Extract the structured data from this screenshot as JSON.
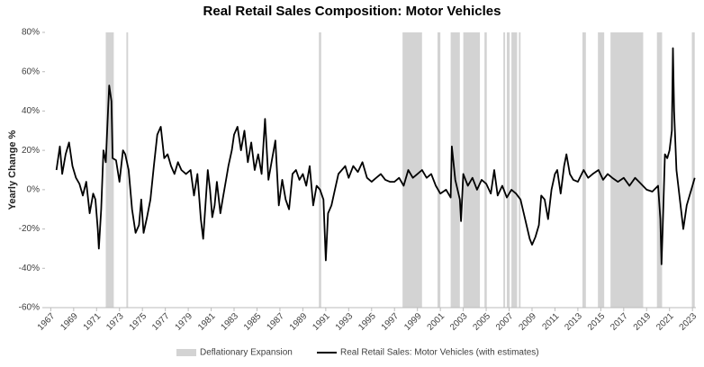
{
  "chart_data": {
    "type": "line",
    "title": "Real Retail Sales Composition: Motor Vehicles",
    "y_label": "Yearly Change %",
    "xlim": [
      1966.5,
      2023.3
    ],
    "xticks": [
      1967,
      1969,
      1971,
      1973,
      1975,
      1977,
      1979,
      1981,
      1983,
      1985,
      1987,
      1989,
      1991,
      1993,
      1995,
      1997,
      1999,
      2001,
      2003,
      2005,
      2007,
      2009,
      2011,
      2013,
      2015,
      2017,
      2019,
      2021,
      2023
    ],
    "ylim": [
      -60,
      80
    ],
    "yticks": [
      {
        "value": -60,
        "label": "-60%"
      },
      {
        "value": -40,
        "label": "-40%"
      },
      {
        "value": -20,
        "label": "-20%"
      },
      {
        "value": 0,
        "label": "0%"
      },
      {
        "value": 20,
        "label": "20%"
      },
      {
        "value": 40,
        "label": "40%"
      },
      {
        "value": 60,
        "label": "60%"
      },
      {
        "value": 80,
        "label": "80%"
      }
    ],
    "legend": "bottom",
    "shaded": {
      "name": "Deflationary Expansion",
      "color": "#d3d3d3",
      "ranges": [
        [
          1971.8,
          1972.5
        ],
        [
          1973.6,
          1973.75
        ],
        [
          1990.4,
          1990.6
        ],
        [
          1997.7,
          1999.4
        ],
        [
          2000.75,
          2001.0
        ],
        [
          2001.9,
          2002.7
        ],
        [
          2003.0,
          2004.45
        ],
        [
          2004.85,
          2005.05
        ],
        [
          2006.5,
          2006.65
        ],
        [
          2006.8,
          2007.05
        ],
        [
          2007.2,
          2007.7
        ],
        [
          2007.85,
          2008.0
        ],
        [
          2013.4,
          2013.7
        ],
        [
          2014.75,
          2015.3
        ],
        [
          2015.85,
          2018.7
        ],
        [
          2019.9,
          2020.35
        ],
        [
          2022.95,
          2023.2
        ]
      ]
    },
    "series": [
      {
        "name": "Real Retail Sales: Motor Vehicles (with estimates)",
        "color": "#000000",
        "x": [
          1967.5,
          1967.8,
          1968.0,
          1968.3,
          1968.6,
          1968.9,
          1969.2,
          1969.5,
          1969.8,
          1970.1,
          1970.4,
          1970.7,
          1970.9,
          1971.1,
          1971.2,
          1971.4,
          1971.6,
          1971.8,
          1972.0,
          1972.1,
          1972.3,
          1972.4,
          1972.7,
          1973.0,
          1973.3,
          1973.5,
          1973.8,
          1974.1,
          1974.4,
          1974.7,
          1974.9,
          1975.1,
          1975.4,
          1975.7,
          1976.0,
          1976.3,
          1976.6,
          1976.9,
          1977.2,
          1977.5,
          1977.8,
          1978.1,
          1978.4,
          1978.8,
          1979.2,
          1979.5,
          1979.8,
          1980.1,
          1980.3,
          1980.5,
          1980.7,
          1980.9,
          1981.1,
          1981.3,
          1981.5,
          1981.8,
          1982.0,
          1982.3,
          1982.5,
          1982.8,
          1983.0,
          1983.3,
          1983.6,
          1983.9,
          1984.2,
          1984.5,
          1984.8,
          1985.1,
          1985.4,
          1985.7,
          1986.0,
          1986.3,
          1986.6,
          1986.9,
          1987.2,
          1987.5,
          1987.8,
          1988.1,
          1988.4,
          1988.7,
          1989.0,
          1989.3,
          1989.6,
          1989.9,
          1990.2,
          1990.5,
          1990.8,
          1991.0,
          1991.2,
          1991.5,
          1991.8,
          1992.1,
          1992.4,
          1992.7,
          1993.0,
          1993.4,
          1993.8,
          1994.2,
          1994.6,
          1995.0,
          1995.4,
          1995.8,
          1996.2,
          1996.6,
          1997.0,
          1997.4,
          1997.8,
          1998.2,
          1998.6,
          1999.0,
          1999.4,
          1999.8,
          2000.2,
          2000.6,
          2001.0,
          2001.5,
          2001.9,
          2002.0,
          2002.3,
          2002.7,
          2002.8,
          2003.0,
          2003.4,
          2003.8,
          2004.2,
          2004.6,
          2005.0,
          2005.4,
          2005.7,
          2006.0,
          2006.4,
          2006.8,
          2007.2,
          2007.6,
          2008.0,
          2008.4,
          2008.8,
          2009.0,
          2009.3,
          2009.6,
          2009.8,
          2010.1,
          2010.4,
          2010.7,
          2011.0,
          2011.2,
          2011.5,
          2011.8,
          2012.0,
          2012.3,
          2012.6,
          2013.0,
          2013.5,
          2013.9,
          2014.3,
          2014.8,
          2015.2,
          2015.6,
          2016.0,
          2016.5,
          2017.0,
          2017.5,
          2018.0,
          2018.5,
          2019.0,
          2019.5,
          2020.0,
          2020.2,
          2020.3,
          2020.4,
          2020.6,
          2020.8,
          2021.0,
          2021.2,
          2021.3,
          2021.4,
          2021.6,
          2021.9,
          2022.2,
          2022.5,
          2022.8,
          2023.0,
          2023.2
        ],
        "values": [
          10,
          22,
          8,
          18,
          24,
          12,
          6,
          3,
          -3,
          4,
          -12,
          -2,
          -5,
          -20,
          -30,
          -10,
          20,
          14,
          40,
          53,
          45,
          16,
          15,
          4,
          20,
          18,
          10,
          -10,
          -22,
          -18,
          -5,
          -22,
          -14,
          -5,
          12,
          28,
          32,
          16,
          18,
          12,
          8,
          14,
          10,
          8,
          10,
          -3,
          8,
          -15,
          -25,
          -8,
          10,
          0,
          -14,
          -8,
          4,
          -12,
          -5,
          5,
          12,
          20,
          28,
          32,
          20,
          30,
          14,
          24,
          10,
          18,
          8,
          36,
          5,
          15,
          25,
          -8,
          5,
          -5,
          -10,
          8,
          10,
          5,
          8,
          2,
          12,
          -8,
          2,
          0,
          -5,
          -36,
          -12,
          -8,
          0,
          8,
          10,
          12,
          6,
          12,
          9,
          14,
          6,
          4,
          6,
          8,
          5,
          4,
          4,
          6,
          2,
          10,
          6,
          8,
          10,
          6,
          8,
          2,
          -2,
          0,
          -4,
          22,
          5,
          -5,
          -16,
          8,
          2,
          6,
          0,
          5,
          3,
          -2,
          10,
          -3,
          2,
          -4,
          0,
          -2,
          -5,
          -15,
          -25,
          -28,
          -24,
          -18,
          -3,
          -5,
          -15,
          0,
          8,
          10,
          -2,
          12,
          18,
          8,
          5,
          4,
          10,
          6,
          8,
          10,
          5,
          8,
          6,
          4,
          6,
          2,
          6,
          3,
          0,
          -1,
          2,
          -15,
          -38,
          -20,
          18,
          16,
          20,
          30,
          72,
          40,
          10,
          -5,
          -20,
          -8,
          -2,
          2,
          6
        ]
      }
    ]
  }
}
